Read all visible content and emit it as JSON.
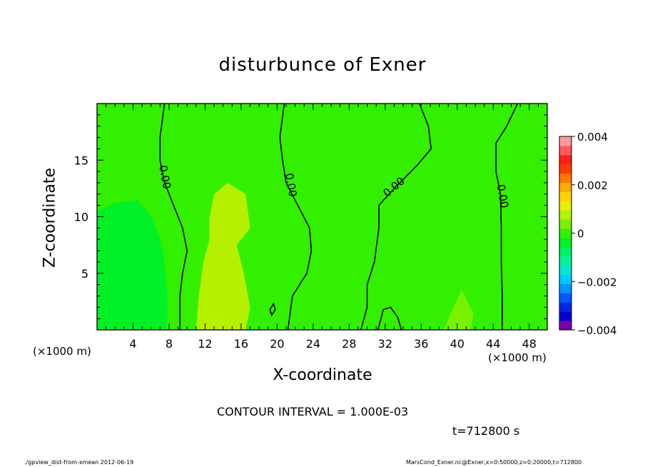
{
  "chart_data": {
    "type": "heatmap",
    "title": "disturbunce of Exner",
    "xlabel": "X-coordinate",
    "ylabel": "Z-coordinate",
    "x_unit_label": "(×1000 m)",
    "x_ticks": [
      4,
      8,
      12,
      16,
      20,
      24,
      28,
      32,
      36,
      40,
      44,
      48
    ],
    "y_ticks": [
      5,
      10,
      15
    ],
    "xlim": [
      0,
      50
    ],
    "ylim": [
      0,
      20
    ],
    "colorbar": {
      "ticks": [
        "0.004",
        "0.002",
        "0",
        "−0.002",
        "−0.004"
      ],
      "tick_values": [
        0.004,
        0.002,
        0,
        -0.002,
        -0.004
      ],
      "range": [
        -0.004,
        0.004
      ],
      "colors": [
        "#7b00a8",
        "#0000c8",
        "#0028e6",
        "#005aff",
        "#0096ff",
        "#00c8ff",
        "#00e6d2",
        "#00f0a0",
        "#00f064",
        "#00f028",
        "#32f000",
        "#78f000",
        "#b4f000",
        "#e6f000",
        "#ffd200",
        "#ffaa00",
        "#ff7800",
        "#ff3c00",
        "#ff1e1e",
        "#ff5a5a",
        "#ff96a0"
      ]
    },
    "contour_interval_label": "CONTOUR INTERVAL = 1.000E-03",
    "contour_labels": [
      "0.00",
      "0.00",
      "0.00",
      "0.00"
    ],
    "regions": [
      {
        "name": "background",
        "value": 0.0001
      },
      {
        "name": "left negative pocket",
        "value": -0.0004,
        "x": [
          0,
          7.5
        ],
        "z": [
          0,
          11.5
        ]
      },
      {
        "name": "central positive plume",
        "value": 0.0006,
        "x": [
          11,
          17
        ],
        "z": [
          0,
          13
        ]
      },
      {
        "name": "small positive patch",
        "value": 0.0003,
        "x": [
          38,
          42
        ],
        "z": [
          0,
          3.5
        ]
      }
    ],
    "zero_contours": [
      {
        "label_at": [
          7.5,
          13.5
        ],
        "points": [
          [
            7.5,
            20
          ],
          [
            7,
            17
          ],
          [
            7,
            15
          ],
          [
            7.5,
            13
          ],
          [
            8.5,
            11
          ],
          [
            9.5,
            9
          ],
          [
            10,
            7
          ],
          [
            9.5,
            5
          ],
          [
            9.2,
            3
          ],
          [
            9.2,
            0
          ]
        ]
      },
      {
        "label_at": [
          21.5,
          12.8
        ],
        "points": [
          [
            20.8,
            20
          ],
          [
            20.3,
            17
          ],
          [
            20.6,
            15
          ],
          [
            21,
            13
          ],
          [
            22.3,
            11
          ],
          [
            23.6,
            9
          ],
          [
            23.8,
            7
          ],
          [
            23.3,
            5
          ],
          [
            21.7,
            3
          ],
          [
            21.2,
            0
          ]
        ]
      },
      {
        "label_at": [
          33,
          12.6
        ],
        "points": [
          [
            35.8,
            20
          ],
          [
            36.8,
            18
          ],
          [
            37.1,
            16
          ],
          [
            35.5,
            14.5
          ],
          [
            33,
            12.5
          ],
          [
            31.3,
            11
          ],
          [
            31.3,
            9
          ],
          [
            30.8,
            6
          ],
          [
            30,
            4
          ],
          [
            30,
            2
          ],
          [
            29.3,
            0
          ]
        ]
      },
      {
        "label_at": [
          45,
          11.8
        ],
        "points": [
          [
            46.7,
            20
          ],
          [
            45.5,
            18
          ],
          [
            44.3,
            16.5
          ],
          [
            44.3,
            14
          ],
          [
            44.8,
            12
          ],
          [
            44.9,
            9
          ],
          [
            44.9,
            6
          ],
          [
            45,
            3
          ],
          [
            45,
            0
          ]
        ]
      },
      {
        "label_at": null,
        "points": [
          [
            31.2,
            0
          ],
          [
            31.8,
            1.8
          ],
          [
            32.6,
            2
          ],
          [
            33.4,
            1.1
          ],
          [
            33.8,
            0
          ]
        ]
      },
      {
        "label_at": null,
        "points": [
          [
            19.2,
            1.8
          ],
          [
            19.6,
            2.3
          ],
          [
            19.8,
            1.8
          ],
          [
            19.4,
            1.3
          ],
          [
            19.2,
            1.8
          ]
        ]
      }
    ],
    "time_label": "t=712800 s",
    "footer_left": "./gpview_dist-from-xmean  2012-06-19",
    "footer_right": "MarsCond_Exner.nc@Exner,x=0:50000,z=0:20000,t=712800"
  }
}
